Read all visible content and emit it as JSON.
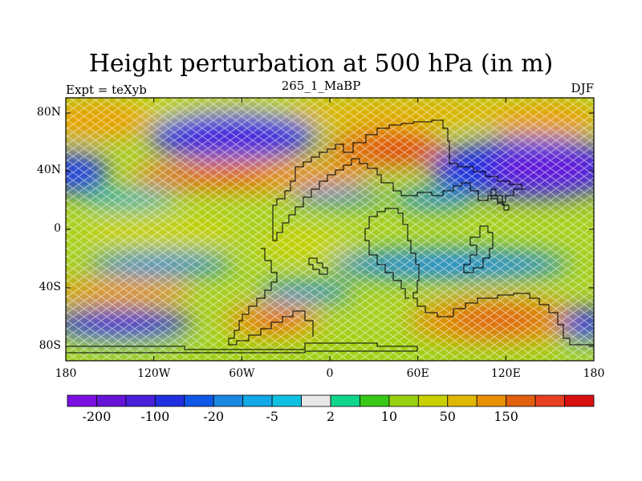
{
  "title": "Height perturbation at 500 hPa (in m)",
  "left_label": "Expt = teXyb",
  "center_label": "265_1_MaBP",
  "right_label": "DJF",
  "map": {
    "lat_ticks": [
      "80N",
      "40N",
      "0",
      "40S",
      "80S"
    ],
    "lon_ticks": [
      "180",
      "120W",
      "60W",
      "0",
      "60E",
      "120E",
      "180"
    ],
    "hatch_pattern": "crosshatch-overlay"
  },
  "colorbar": {
    "colors": [
      "#7b10e0",
      "#6614d8",
      "#4a20dc",
      "#2030e0",
      "#1058e8",
      "#1a88e0",
      "#12a8e6",
      "#10c0e0",
      "#e8e8e8",
      "#10d68c",
      "#38c818",
      "#98d010",
      "#c8d000",
      "#e0b800",
      "#e89000",
      "#e06010",
      "#e84020",
      "#d81010"
    ],
    "tick_labels": [
      "-200",
      "-100",
      "-20",
      "-5",
      "2",
      "10",
      "50",
      "150"
    ]
  }
}
